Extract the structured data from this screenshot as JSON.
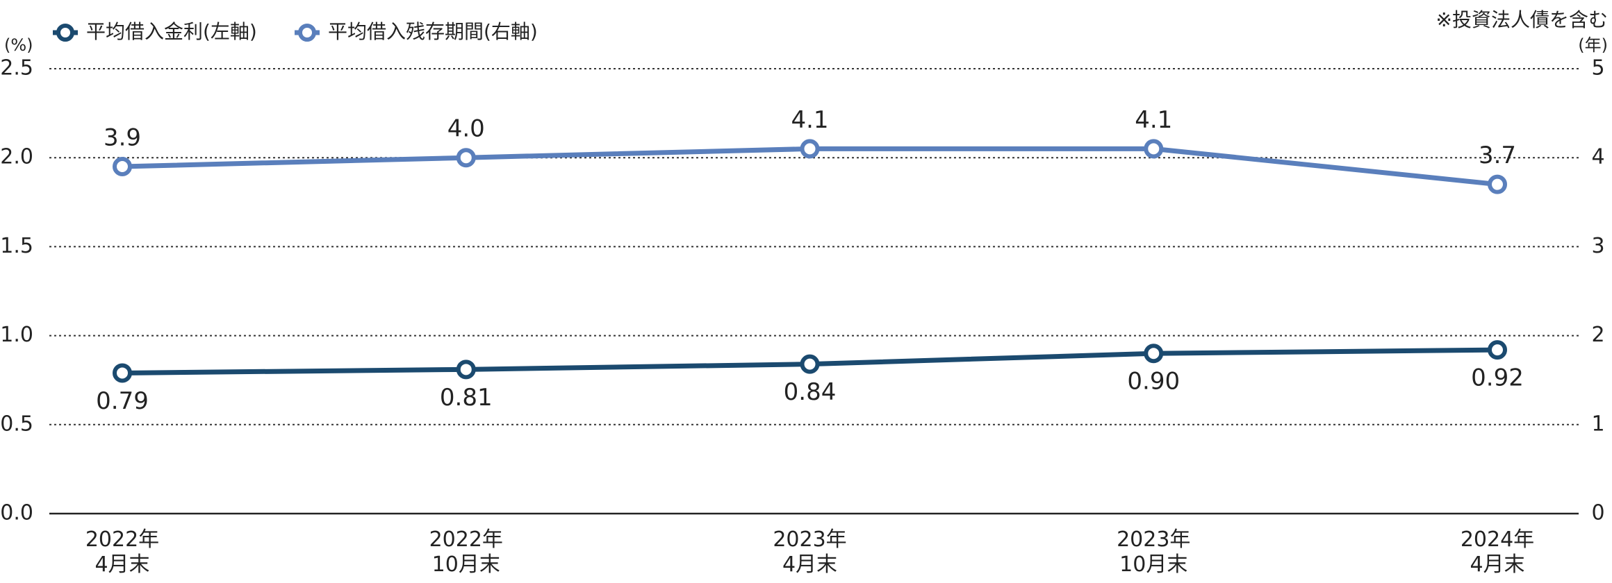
{
  "chart_data": {
    "type": "line",
    "y_label": "(%)",
    "y2_label": "(年)",
    "annotation": "※投資法人債を含む",
    "categories": [
      "2022年\n4月末",
      "2022年\n10月末",
      "2023年\n4月末",
      "2023年\n10月末",
      "2024年\n4月末"
    ],
    "series": [
      {
        "name": "平均借入金利(左軸)",
        "color": "#1b4a6f",
        "values": [
          0.79,
          0.81,
          0.84,
          0.9,
          0.92
        ],
        "value_labels": [
          "0.79",
          "0.81",
          "0.84",
          "0.90",
          "0.92"
        ]
      },
      {
        "name": "平均借入残存期間(右軸)",
        "color": "#5a7fbc",
        "axis": "y2",
        "values": [
          3.9,
          4.0,
          4.1,
          4.1,
          3.7
        ],
        "value_labels": [
          "3.9",
          "4.0",
          "4.1",
          "4.1",
          "3.7"
        ]
      }
    ],
    "ylim": [
      0,
      2.5
    ],
    "yticks": [
      {
        "value": 0,
        "label": "0.0"
      },
      0.5,
      {
        "value": 1,
        "label": "1.0"
      },
      1.5,
      {
        "value": 2,
        "label": "2.0"
      },
      2.5
    ],
    "y2lim": [
      0,
      5
    ],
    "y2ticks": [
      0,
      1,
      2,
      3,
      4,
      5
    ],
    "grid": true
  }
}
